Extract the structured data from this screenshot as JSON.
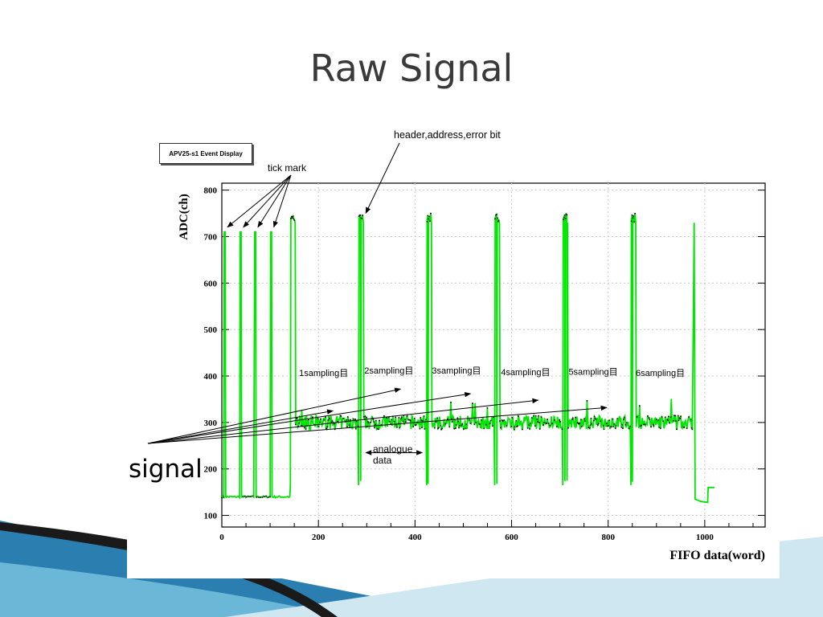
{
  "slide": {
    "title": "Raw Signal",
    "event_display_label": "APV25-s1 Event Display",
    "signal_label": "signal"
  },
  "annotations": {
    "header": "header,address,error bit",
    "tick_mark": "tick mark",
    "analogue": "analogue",
    "data": "data",
    "samplings": [
      "1sampling目",
      "2sampling目",
      "3sampling目",
      "4sampling目",
      "5sampling目",
      "6sampling目"
    ],
    "sampling_positions": [
      {
        "x": 160,
        "y": 400
      },
      {
        "x": 295,
        "y": 405
      },
      {
        "x": 435,
        "y": 405
      },
      {
        "x": 578,
        "y": 402
      },
      {
        "x": 718,
        "y": 403
      },
      {
        "x": 857,
        "y": 400
      }
    ],
    "tick_mark_targets": [
      5,
      38,
      68,
      101
    ],
    "header_target": {
      "x": 298,
      "y": 740
    },
    "analogue_arrow": [
      298,
      415
    ],
    "signal_arrow_targets": [
      {
        "x": 230,
        "y": 325
      },
      {
        "x": 370,
        "y": 372
      },
      {
        "x": 515,
        "y": 362
      },
      {
        "x": 655,
        "y": 348
      },
      {
        "x": 797,
        "y": 332
      }
    ]
  },
  "chart_data": {
    "type": "line",
    "title": "",
    "xlabel": "FIFO data(word)",
    "ylabel": "ADC(ch)",
    "xlim": [
      0,
      1125
    ],
    "ylim": [
      75,
      815
    ],
    "xticks": [
      0,
      200,
      400,
      600,
      800,
      1000
    ],
    "yticks": [
      100,
      200,
      300,
      400,
      500,
      600,
      700,
      800
    ],
    "grid": true,
    "series": [
      {
        "color": "#00e600",
        "baseline_initial": 140,
        "baseline_analogue": 300,
        "tick_mark_positions": [
          5,
          38,
          68,
          101
        ],
        "tick_mark_value": 710,
        "sampling_frames": [
          {
            "header_start": 142,
            "header_end": 153,
            "analog_start": 153,
            "analog_end": 283
          },
          {
            "header_start": 283,
            "header_end": 294,
            "analog_start": 294,
            "analog_end": 424
          },
          {
            "header_start": 424,
            "header_end": 435,
            "analog_start": 435,
            "analog_end": 565
          },
          {
            "header_start": 565,
            "header_end": 576,
            "analog_start": 576,
            "analog_end": 706
          },
          {
            "header_start": 706,
            "header_end": 717,
            "analog_start": 717,
            "analog_end": 847
          },
          {
            "header_start": 847,
            "header_end": 858,
            "analog_start": 858,
            "analog_end": 975
          }
        ],
        "header_value": 740,
        "frame_dip": 165,
        "end_spike_x": 978,
        "end_spike_value": 730,
        "tail_values": [
          135,
          130,
          128,
          160
        ]
      }
    ]
  },
  "colors": {
    "signal": "#00e600",
    "marker": "#000000",
    "grid": "#c8c8c8",
    "swoosh_dark": "#1a1a1a",
    "swoosh_blue": "#2a7fb0",
    "swoosh_light": "#bfe0ee"
  }
}
